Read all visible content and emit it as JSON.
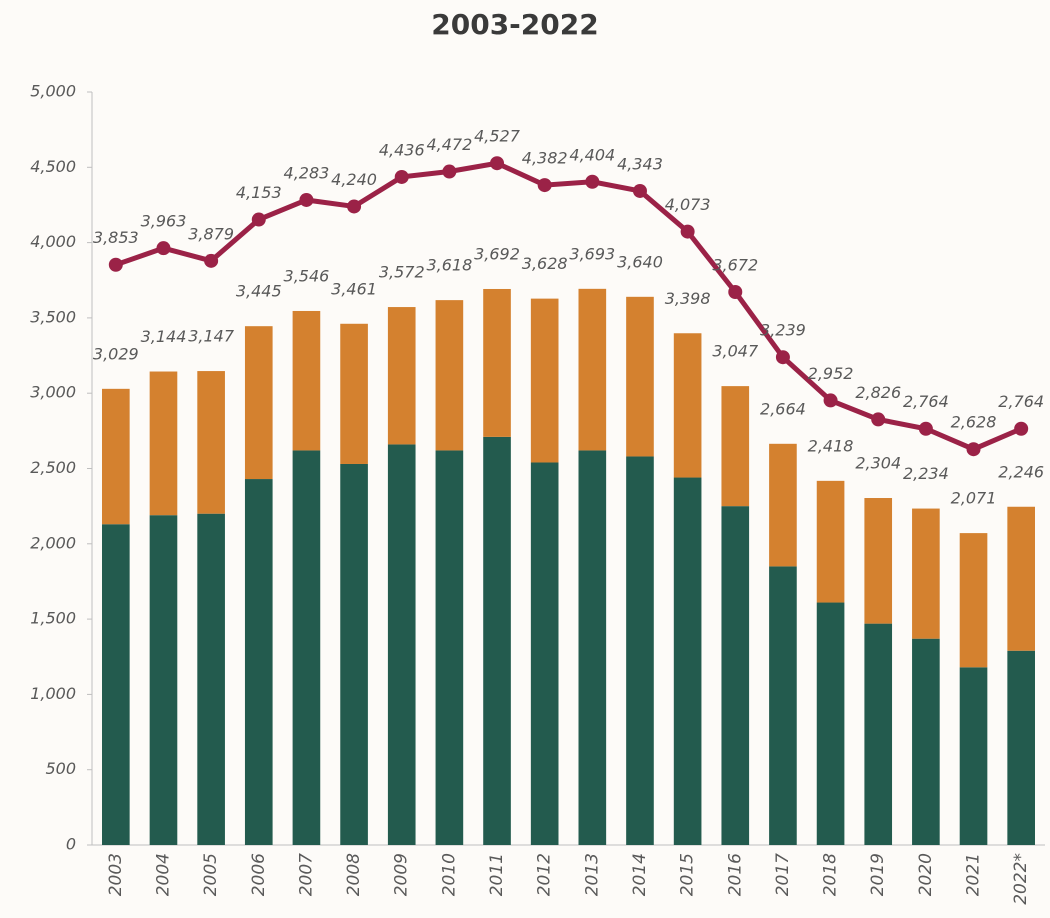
{
  "chart_data": {
    "type": "bar-line",
    "title": "2003-2022",
    "categories": [
      "2003",
      "2004",
      "2005",
      "2006",
      "2007",
      "2008",
      "2009",
      "2010",
      "2011",
      "2012",
      "2013",
      "2014",
      "2015",
      "2016",
      "2017",
      "2018",
      "2019",
      "2020",
      "2021",
      "2022*"
    ],
    "series": [
      {
        "type": "bar",
        "color": "#235b4e",
        "values": [
          2130,
          2190,
          2200,
          2430,
          2620,
          2530,
          2660,
          2620,
          2710,
          2540,
          2620,
          2580,
          2440,
          2250,
          1850,
          1610,
          1470,
          1370,
          1180,
          1290
        ]
      },
      {
        "type": "bar",
        "color": "#d4812f",
        "values": [
          899,
          954,
          947,
          1015,
          926,
          931,
          912,
          998,
          982,
          1088,
          1073,
          1060,
          958,
          797,
          814,
          808,
          834,
          864,
          891,
          956
        ]
      },
      {
        "type": "line",
        "color": "#9b2247",
        "values": [
          3853,
          3963,
          3879,
          4153,
          4283,
          4240,
          4436,
          4472,
          4527,
          4382,
          4404,
          4343,
          4073,
          3672,
          3239,
          2952,
          2826,
          2764,
          2628,
          2764
        ],
        "value_labels": [
          "3,853",
          "3,963",
          "3,879",
          "4,153",
          "4,283",
          "4,240",
          "4,436",
          "4,472",
          "4,527",
          "4,382",
          "4,404",
          "4,343",
          "4,073",
          "3,672",
          "3,239",
          "2,952",
          "2,826",
          "2,764",
          "2,628",
          "2,764"
        ]
      }
    ],
    "totals": [
      3029,
      3144,
      3147,
      3445,
      3546,
      3461,
      3572,
      3618,
      3692,
      3628,
      3693,
      3640,
      3398,
      3047,
      2664,
      2418,
      2304,
      2234,
      2071,
      2246
    ],
    "total_labels": [
      "3,029",
      "3,144",
      "3,147",
      "3,445",
      "3,546",
      "3,461",
      "3,572",
      "3,618",
      "3,692",
      "3,628",
      "3,693",
      "3,640",
      "3,398",
      "3,047",
      "2,664",
      "2,418",
      "2,304",
      "2,234",
      "2,071",
      "2,246"
    ],
    "ylim": [
      0,
      5000
    ],
    "yticks": [
      0,
      {
        "value": 500,
        "label": "500"
      },
      {
        "value": 1000,
        "label": "1,000"
      },
      {
        "value": 1500,
        "label": "1,500"
      },
      {
        "value": 2000,
        "label": "2,000"
      },
      {
        "value": 2500,
        "label": "2,500"
      },
      {
        "value": 3000,
        "label": "3,000"
      },
      {
        "value": 3500,
        "label": "3,500"
      },
      {
        "value": 4000,
        "label": "4,000"
      },
      {
        "value": 4500,
        "label": "4,500"
      },
      {
        "value": 5000,
        "label": "5,000"
      }
    ],
    "grid": false
  }
}
